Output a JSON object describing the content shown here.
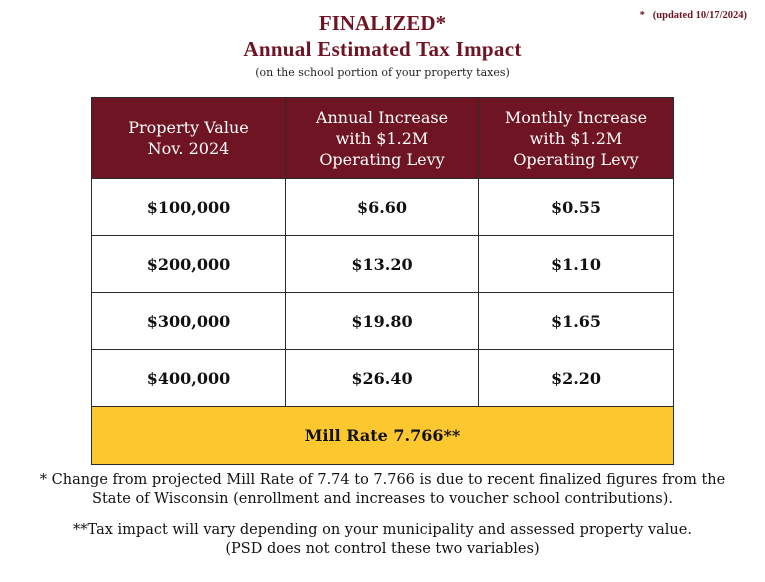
{
  "update_note": "*   (updated 10/17/2024)",
  "header": {
    "title_line1": "FINALIZED*",
    "title_line2": "Annual Estimated Tax Impact",
    "subtitle": "(on the school portion of your property taxes)"
  },
  "table": {
    "headers": [
      [
        "Property Value",
        "Nov. 2024"
      ],
      [
        "Annual Increase",
        "with $1.2M",
        "Operating Levy"
      ],
      [
        "Monthly Increase",
        "with $1.2M",
        "Operating Levy"
      ]
    ],
    "rows": [
      [
        "$100,000",
        "$6.60",
        "$0.55"
      ],
      [
        "$200,000",
        "$13.20",
        "$1.10"
      ],
      [
        "$300,000",
        "$19.80",
        "$1.65"
      ],
      [
        "$400,000",
        "$26.40",
        "$2.20"
      ]
    ],
    "mill_rate": "Mill Rate 7.766**"
  },
  "footnotes": {
    "note1_line1": "*  Change from projected Mill Rate of 7.74 to 7.766 is due to recent finalized figures from the",
    "note1_line2": "State of Wisconsin (enrollment and increases to voucher school contributions).",
    "note2_line1": "**Tax impact will vary depending on your municipality and assessed property value.",
    "note2_line2": "(PSD does not control these two variables)"
  },
  "colors": {
    "maroon": "#6e1423",
    "gold": "#fcc72f"
  }
}
